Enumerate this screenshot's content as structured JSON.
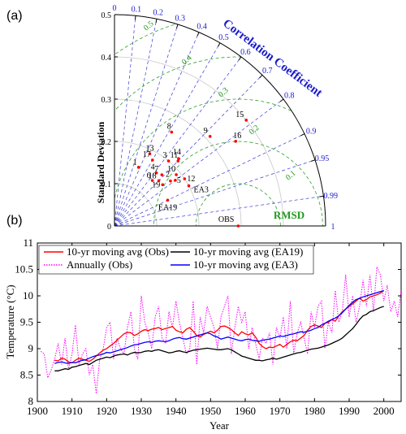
{
  "chart_data": [
    {
      "panel_label": "(a)",
      "type": "taylor",
      "ylabel": "Standard Deviation",
      "corr_title": "Correlation Coefficient",
      "rmsd_title": "RMSD",
      "std_ticks": [
        "0",
        "0.1",
        "0.2",
        "0.3",
        "0.4",
        "0.5"
      ],
      "std_max": 0.5,
      "corr_ticks": [
        "0",
        "0.1",
        "0.2",
        "0.3",
        "0.4",
        "0.5",
        "0.6",
        "0.7",
        "0.8",
        "0.9",
        "0.95",
        "0.99",
        "1"
      ],
      "rmsd_ticks": [
        "0.1",
        "0.2",
        "0.3",
        "0.4",
        "0.5"
      ],
      "points": [
        {
          "label": "OBS",
          "std": 0.293,
          "corr": 1.0
        },
        {
          "label": "1",
          "std": 0.15,
          "corr": 0.38
        },
        {
          "label": "2",
          "std": 0.17,
          "corr": 0.78
        },
        {
          "label": "3",
          "std": 0.2,
          "corr": 0.64
        },
        {
          "label": "4",
          "std": 0.16,
          "corr": 0.62
        },
        {
          "label": "5",
          "std": 0.18,
          "corr": 0.8
        },
        {
          "label": "6",
          "std": 0.14,
          "corr": 0.64
        },
        {
          "label": "7",
          "std": 0.165,
          "corr": 0.68
        },
        {
          "label": "8",
          "std": 0.26,
          "corr": 0.52
        },
        {
          "label": "9",
          "std": 0.31,
          "corr": 0.73
        },
        {
          "label": "10",
          "std": 0.19,
          "corr": 0.77
        },
        {
          "label": "11",
          "std": 0.215,
          "corr": 0.7
        },
        {
          "label": "12",
          "std": 0.2,
          "corr": 0.83
        },
        {
          "label": "13",
          "std": 0.19,
          "corr": 0.44
        },
        {
          "label": "14",
          "std": 0.22,
          "corr": 0.69
        },
        {
          "label": "15",
          "std": 0.4,
          "corr": 0.78
        },
        {
          "label": "16",
          "std": 0.35,
          "corr": 0.82
        },
        {
          "label": "17",
          "std": 0.18,
          "corr": 0.5
        },
        {
          "label": "18",
          "std": 0.15,
          "corr": 0.7
        },
        {
          "label": "19",
          "std": 0.15,
          "corr": 0.76
        },
        {
          "label": "EA19",
          "std": 0.14,
          "corr": 0.9
        },
        {
          "label": "EA3",
          "std": 0.2,
          "corr": 0.88
        }
      ]
    },
    {
      "panel_label": "(b)",
      "type": "line",
      "xlabel": "Year",
      "ylabel": "Temperature (°C)",
      "xlim": [
        1900,
        2005
      ],
      "ylim": [
        8,
        11
      ],
      "x_ticks": [
        1900,
        1910,
        1920,
        1930,
        1940,
        1950,
        1960,
        1970,
        1980,
        1990,
        2000
      ],
      "y_ticks": [
        "8",
        "8.5",
        "9",
        "9.5",
        "10",
        "10.5",
        "11"
      ],
      "legend": [
        "10-yr moving avg (Obs)",
        "Annually (Obs)",
        "10-yr moving avg (EA19)",
        "10-yr moving avg (EA3)"
      ],
      "colors": {
        "obs_ma": "#ff0000",
        "obs_annual": "#ff00ff",
        "ea19_ma": "#000000",
        "ea3_ma": "#0000ff"
      },
      "series": [
        {
          "key": "obs_annual",
          "x_start": 1901,
          "values": [
            8.95,
            8.9,
            8.45,
            8.6,
            8.8,
            9.1,
            8.7,
            9.2,
            8.6,
            8.9,
            9.45,
            8.7,
            8.9,
            9.0,
            8.5,
            8.7,
            8.15,
            8.8,
            9.0,
            9.4,
            9.5,
            8.8,
            9.2,
            9.0,
            8.9,
            9.4,
            9.7,
            9.0,
            8.8,
            10.0,
            9.5,
            9.3,
            9.0,
            9.6,
            9.8,
            9.2,
            9.1,
            9.7,
            9.4,
            9.9,
            9.5,
            9.2,
            8.9,
            9.0,
            9.9,
            8.7,
            9.6,
            9.3,
            9.8,
            9.6,
            9.4,
            9.0,
            9.6,
            9.8,
            10.0,
            8.9,
            9.4,
            9.8,
            9.5,
            9.7,
            9.0,
            9.4,
            9.1,
            8.8,
            9.2,
            9.1,
            9.3,
            8.7,
            9.4,
            9.2,
            9.6,
            9.0,
            9.9,
            8.9,
            9.3,
            9.5,
            9.2,
            8.9,
            9.7,
            9.4,
            9.8,
            9.9,
            9.0,
            9.5,
            9.3,
            10.1,
            9.5,
            9.7,
            10.4,
            9.6,
            10.0,
            9.5,
            9.8,
            10.3,
            9.8,
            10.4,
            9.7,
            10.55,
            10.4,
            9.9,
            10.2,
            9.7,
            9.9,
            9.6,
            10.1
          ]
        },
        {
          "key": "obs_ma",
          "x_start": 1905,
          "values": [
            8.78,
            8.77,
            8.82,
            8.8,
            8.75,
            8.73,
            8.78,
            8.82,
            8.8,
            8.78,
            8.76,
            8.8,
            8.86,
            8.92,
            8.97,
            9.0,
            9.05,
            9.1,
            9.16,
            9.22,
            9.28,
            9.31,
            9.3,
            9.25,
            9.28,
            9.33,
            9.36,
            9.34,
            9.37,
            9.38,
            9.4,
            9.36,
            9.38,
            9.4,
            9.42,
            9.35,
            9.32,
            9.3,
            9.37,
            9.4,
            9.33,
            9.25,
            9.22,
            9.27,
            9.3,
            9.33,
            9.3,
            9.35,
            9.42,
            9.43,
            9.4,
            9.36,
            9.3,
            9.25,
            9.32,
            9.28,
            9.26,
            9.3,
            9.22,
            9.1,
            9.04,
            9.0,
            9.03,
            9.02,
            9.05,
            9.08,
            9.03,
            9.08,
            9.13,
            9.16,
            9.15,
            9.2,
            9.25,
            9.35,
            9.42,
            9.45,
            9.43,
            9.4,
            9.48,
            9.5,
            9.55,
            9.52,
            9.62,
            9.7,
            9.75,
            9.8,
            9.85,
            9.9,
            9.96,
            9.9,
            9.93,
            9.98,
            10.0,
            10.02,
            10.05,
            10.1
          ]
        },
        {
          "key": "ea19_ma",
          "x_start": 1905,
          "values": [
            8.58,
            8.58,
            8.6,
            8.62,
            8.61,
            8.65,
            8.66,
            8.68,
            8.7,
            8.72,
            8.7,
            8.74,
            8.78,
            8.8,
            8.82,
            8.84,
            8.83,
            8.86,
            8.88,
            8.89,
            8.9,
            8.88,
            8.91,
            8.93,
            8.92,
            8.93,
            8.95,
            8.96,
            8.95,
            8.97,
            8.98,
            8.96,
            8.94,
            8.92,
            8.93,
            8.95,
            8.96,
            8.94,
            8.93,
            8.95,
            8.97,
            8.98,
            8.99,
            9.0,
            9.01,
            9.0,
            8.99,
            8.98,
            8.98,
            8.99,
            9.0,
            8.98,
            8.94,
            8.9,
            8.86,
            8.84,
            8.82,
            8.8,
            8.78,
            8.78,
            8.77,
            8.79,
            8.8,
            8.82,
            8.8,
            8.82,
            8.84,
            8.86,
            8.88,
            8.9,
            8.92,
            8.93,
            8.95,
            8.97,
            8.99,
            9.0,
            9.01,
            9.03,
            9.05,
            9.07,
            9.1,
            9.13,
            9.16,
            9.2,
            9.26,
            9.32,
            9.38,
            9.46,
            9.55,
            9.62,
            9.65,
            9.7,
            9.72,
            9.75,
            9.78,
            9.8
          ]
        },
        {
          "key": "ea3_ma",
          "x_start": 1905,
          "values": [
            8.72,
            8.74,
            8.75,
            8.73,
            8.72,
            8.74,
            8.73,
            8.76,
            8.78,
            8.79,
            8.82,
            8.85,
            8.87,
            8.88,
            8.9,
            8.93,
            8.92,
            8.94,
            8.96,
            8.98,
            9.0,
            9.02,
            9.05,
            9.07,
            9.08,
            9.1,
            9.12,
            9.13,
            9.12,
            9.14,
            9.15,
            9.14,
            9.13,
            9.15,
            9.18,
            9.2,
            9.21,
            9.19,
            9.18,
            9.2,
            9.22,
            9.24,
            9.26,
            9.28,
            9.3,
            9.28,
            9.24,
            9.22,
            9.18,
            9.2,
            9.22,
            9.2,
            9.18,
            9.16,
            9.15,
            9.17,
            9.18,
            9.16,
            9.15,
            9.14,
            9.16,
            9.17,
            9.18,
            9.2,
            9.22,
            9.24,
            9.23,
            9.25,
            9.27,
            9.28,
            9.3,
            9.32,
            9.31,
            9.33,
            9.35,
            9.38,
            9.4,
            9.45,
            9.48,
            9.52,
            9.55,
            9.58,
            9.62,
            9.68,
            9.75,
            9.82,
            9.88,
            9.93,
            9.95,
            9.98,
            10.0,
            10.02,
            10.04,
            10.06,
            10.08,
            10.1
          ]
        }
      ]
    }
  ]
}
